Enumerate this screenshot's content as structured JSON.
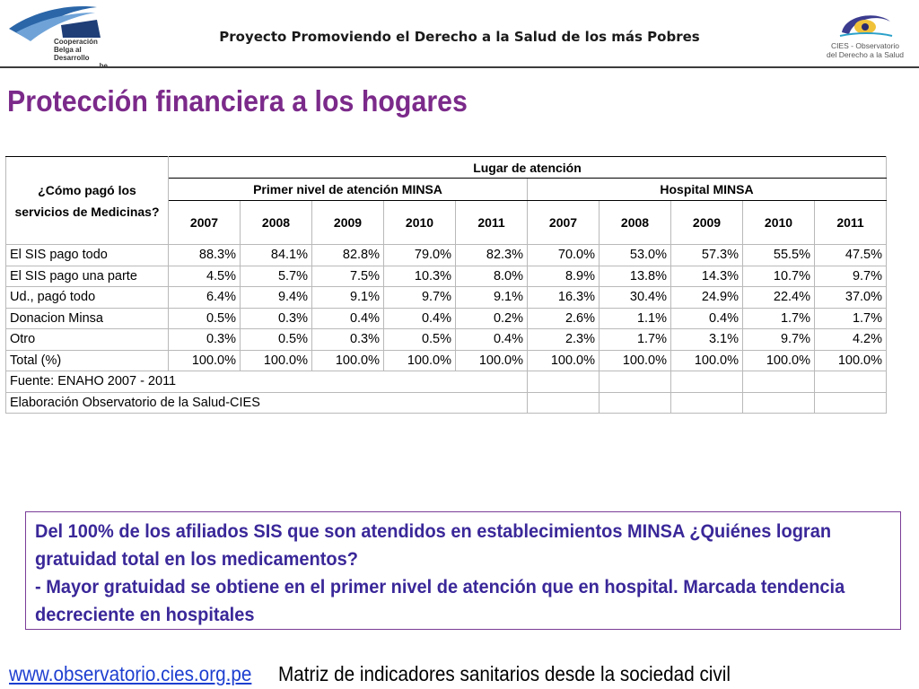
{
  "header": {
    "title": "Proyecto Promoviendo el Derecho a la Salud de los más Pobres",
    "left_logo": {
      "line1": "Cooperación",
      "line2": "Belga al Desarrollo",
      "line3": ".be"
    },
    "right_logo": {
      "line1": "CIES - Observatorio",
      "line2": "del Derecho a la Salud"
    }
  },
  "slide_title": "Protección financiera a los hogares",
  "table": {
    "corner_label": "¿Cómo pagó los servicios de Medicinas?",
    "group_label": "Lugar de atención",
    "level1": "Primer nivel de atención MINSA",
    "level2": "Hospital MINSA",
    "years": [
      "2007",
      "2008",
      "2009",
      "2010",
      "2011",
      "2007",
      "2008",
      "2009",
      "2010",
      "2011"
    ],
    "rows": [
      {
        "label": "El SIS pago todo",
        "values": [
          "88.3%",
          "84.1%",
          "82.8%",
          "79.0%",
          "82.3%",
          "70.0%",
          "53.0%",
          "57.3%",
          "55.5%",
          "47.5%"
        ]
      },
      {
        "label": "El SIS pago una parte",
        "values": [
          "4.5%",
          "5.7%",
          "7.5%",
          "10.3%",
          "8.0%",
          "8.9%",
          "13.8%",
          "14.3%",
          "10.7%",
          "9.7%"
        ]
      },
      {
        "label": "Ud., pagó todo",
        "values": [
          "6.4%",
          "9.4%",
          "9.1%",
          "9.7%",
          "9.1%",
          "16.3%",
          "30.4%",
          "24.9%",
          "22.4%",
          "37.0%"
        ]
      },
      {
        "label": "Donacion Minsa",
        "values": [
          "0.5%",
          "0.3%",
          "0.4%",
          "0.4%",
          "0.2%",
          "2.6%",
          "1.1%",
          "0.4%",
          "1.7%",
          "1.7%"
        ]
      },
      {
        "label": "Otro",
        "values": [
          "0.3%",
          "0.5%",
          "0.3%",
          "0.5%",
          "0.4%",
          "2.3%",
          "1.7%",
          "3.1%",
          "9.7%",
          "4.2%"
        ]
      },
      {
        "label": "Total (%)",
        "values": [
          "100.0%",
          "100.0%",
          "100.0%",
          "100.0%",
          "100.0%",
          "100.0%",
          "100.0%",
          "100.0%",
          "100.0%",
          "100.0%"
        ]
      }
    ],
    "source": "Fuente: ENAHO 2007 - 2011",
    "elaboration": "Elaboración Observatorio de la Salud-CIES"
  },
  "callout": {
    "line1": "Del 100% de los afiliados SIS que son atendidos en establecimientos MINSA ¿Quiénes logran",
    "line2": "gratuidad total en los medicamentos?",
    "line3": " - Mayor gratuidad se obtiene en el primer nivel de atención que en hospital. Marcada tendencia",
    "line4": "decreciente en hospitales"
  },
  "footer": {
    "link": "www.observatorio.cies.org.pe",
    "text": "Matriz de indicadores sanitarios desde la sociedad civil"
  }
}
